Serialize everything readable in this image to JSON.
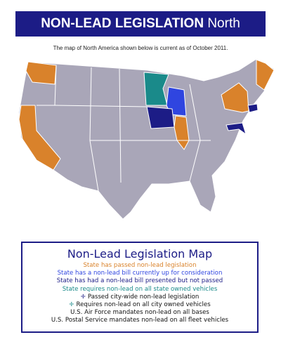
{
  "header": {
    "title": "NON-LEAD LEGISLATION",
    "region": "North America"
  },
  "caption": "The map of North America shown below is current as of October 2011.",
  "legend": {
    "title": "Non-Lead Legislation Map",
    "items": [
      {
        "label": "State has passed non-lead legislation",
        "color": "#d9822b"
      },
      {
        "label": "State has a non-lead bill currently up for consideration",
        "color": "#2f45e0"
      },
      {
        "label": "State has had a non-lead bill presented but not passed",
        "color": "#1c1c86"
      },
      {
        "label": "State requires non-lead on all state owned vehicles",
        "color": "#1a8a8a"
      },
      {
        "label": "Passed city-wide non-lead legislation",
        "color": "#111111"
      },
      {
        "label": "Requires non-lead on all city owned vehicles",
        "color": "#111111"
      },
      {
        "label": "U.S. Air Force mandates non-lead on all bases",
        "color": "#111111"
      },
      {
        "label": "U.S. Postal Service mandates non-lead on all fleet vehicles",
        "color": "#111111"
      }
    ]
  }
}
